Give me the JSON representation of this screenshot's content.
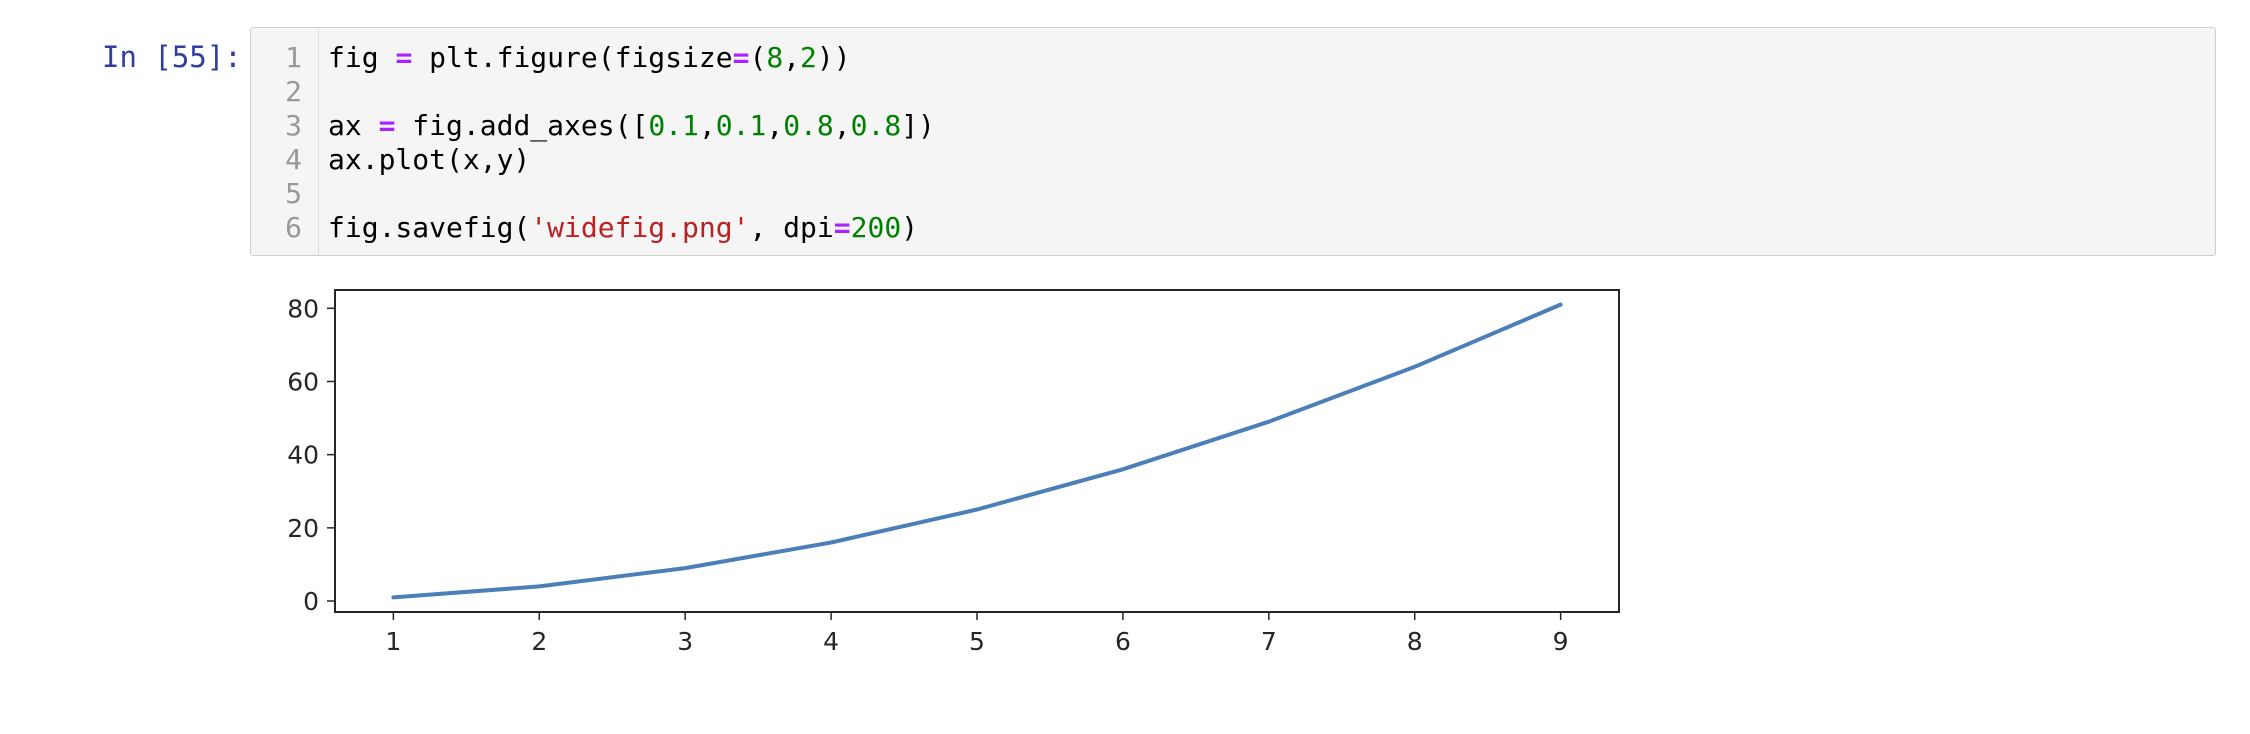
{
  "cell": {
    "prompt": "In [55]:",
    "code_lines": [
      {
        "number": "1",
        "tokens": [
          {
            "text": "fig ",
            "kind": "plain"
          },
          {
            "text": "=",
            "kind": "op"
          },
          {
            "text": " plt.figure(figsize",
            "kind": "plain"
          },
          {
            "text": "=",
            "kind": "op"
          },
          {
            "text": "(",
            "kind": "plain"
          },
          {
            "text": "8",
            "kind": "num"
          },
          {
            "text": ",",
            "kind": "plain"
          },
          {
            "text": "2",
            "kind": "num"
          },
          {
            "text": "))",
            "kind": "plain"
          }
        ]
      },
      {
        "number": "2",
        "tokens": []
      },
      {
        "number": "3",
        "tokens": [
          {
            "text": "ax ",
            "kind": "plain"
          },
          {
            "text": "=",
            "kind": "op"
          },
          {
            "text": " fig.add_axes([",
            "kind": "plain"
          },
          {
            "text": "0.1",
            "kind": "num"
          },
          {
            "text": ",",
            "kind": "plain"
          },
          {
            "text": "0.1",
            "kind": "num"
          },
          {
            "text": ",",
            "kind": "plain"
          },
          {
            "text": "0.8",
            "kind": "num"
          },
          {
            "text": ",",
            "kind": "plain"
          },
          {
            "text": "0.8",
            "kind": "num"
          },
          {
            "text": "])",
            "kind": "plain"
          }
        ]
      },
      {
        "number": "4",
        "tokens": [
          {
            "text": "ax.plot(x,y)",
            "kind": "plain"
          }
        ]
      },
      {
        "number": "5",
        "tokens": []
      },
      {
        "number": "6",
        "tokens": [
          {
            "text": "fig.savefig(",
            "kind": "plain"
          },
          {
            "text": "'widefig.png'",
            "kind": "str"
          },
          {
            "text": ", dpi",
            "kind": "plain"
          },
          {
            "text": "=",
            "kind": "op"
          },
          {
            "text": "200",
            "kind": "num"
          },
          {
            "text": ")",
            "kind": "plain"
          }
        ]
      }
    ]
  },
  "colors": {
    "prompt": "#303f9f",
    "operator": "#aa22ff",
    "number": "#008000",
    "string": "#ba2121",
    "line": "#4c7fb7"
  },
  "chart_data": {
    "type": "line",
    "x": [
      1,
      2,
      3,
      4,
      5,
      6,
      7,
      8,
      9
    ],
    "series": [
      {
        "values": [
          1,
          4,
          9,
          16,
          25,
          36,
          49,
          64,
          81
        ]
      }
    ],
    "xticks": [
      1,
      2,
      3,
      4,
      5,
      6,
      7,
      8,
      9
    ],
    "yticks": [
      0,
      20,
      40,
      60,
      80
    ],
    "xlim": [
      0.6,
      9.4
    ],
    "ylim": [
      -3,
      85
    ],
    "title": "",
    "xlabel": "",
    "ylabel": "",
    "grid": false
  }
}
